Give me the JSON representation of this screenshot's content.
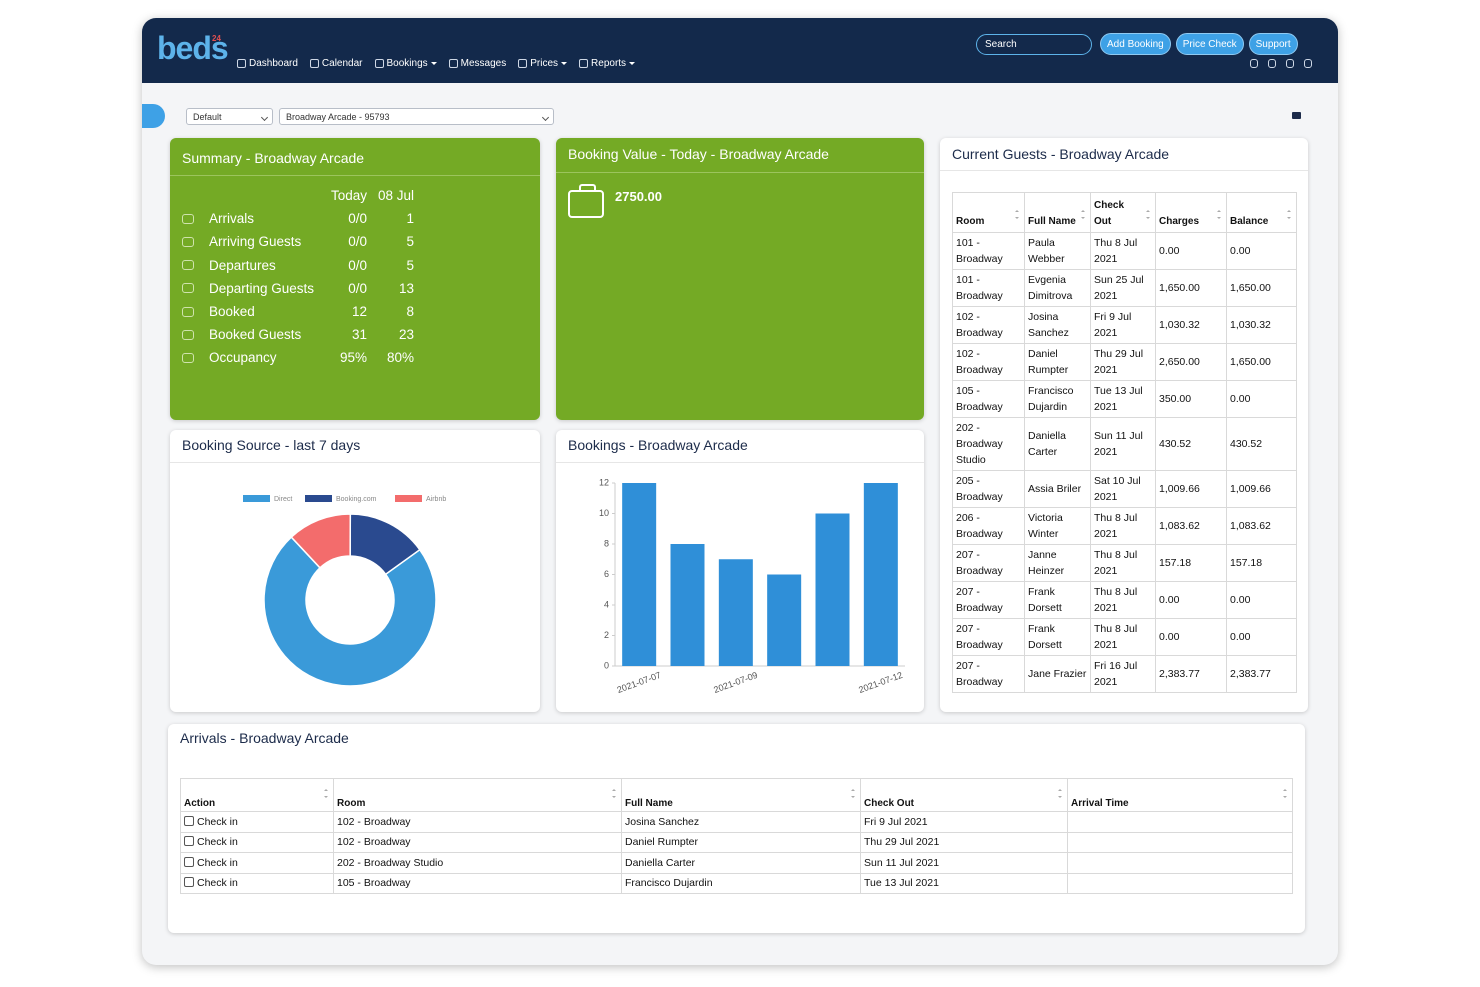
{
  "nav": {
    "logo": "beds",
    "logo_badge": "24",
    "menu": [
      "Dashboard",
      "Calendar",
      "Bookings",
      "Messages",
      "Prices",
      "Reports"
    ],
    "search_placeholder": "Search",
    "buttons": [
      "Add Booking",
      "Price Check",
      "Support"
    ]
  },
  "filters": {
    "view": "Default",
    "property": "Broadway Arcade - 95793"
  },
  "summary": {
    "title": "Summary - Broadway Arcade",
    "columns": [
      "Today",
      "08 Jul"
    ],
    "rows": [
      [
        "Arrivals",
        "0/0",
        "1"
      ],
      [
        "Arriving Guests",
        "0/0",
        "5"
      ],
      [
        "Departures",
        "0/0",
        "5"
      ],
      [
        "Departing Guests",
        "0/0",
        "13"
      ],
      [
        "Booked",
        "12",
        "8"
      ],
      [
        "Booked Guests",
        "31",
        "23"
      ],
      [
        "Occupancy",
        "95%",
        "80%"
      ]
    ]
  },
  "booking_value": {
    "title": "Booking Value - Today - Broadway Arcade",
    "amount": "2750.00"
  },
  "current_guests": {
    "title": "Current Guests - Broadway Arcade",
    "columns": [
      "Room",
      "Full Name",
      "Check Out",
      "Charges",
      "Balance"
    ],
    "rows": [
      [
        "101 - Broadway",
        "Paula Webber",
        "Thu 8 Jul 2021",
        "0.00",
        "0.00"
      ],
      [
        "101 - Broadway",
        "Evgenia Dimitrova",
        "Sun 25 Jul 2021",
        "1,650.00",
        "1,650.00"
      ],
      [
        "102 - Broadway",
        "Josina Sanchez",
        "Fri 9 Jul 2021",
        "1,030.32",
        "1,030.32"
      ],
      [
        "102 - Broadway",
        "Daniel Rumpter",
        "Thu 29 Jul 2021",
        "2,650.00",
        "1,650.00"
      ],
      [
        "105 - Broadway",
        "Francisco Dujardin",
        "Tue 13 Jul 2021",
        "350.00",
        "0.00"
      ],
      [
        "202 - Broadway Studio",
        "Daniella Carter",
        "Sun 11 Jul 2021",
        "430.52",
        "430.52"
      ],
      [
        "205 - Broadway",
        "Assia Briler",
        "Sat 10 Jul 2021",
        "1,009.66",
        "1,009.66"
      ],
      [
        "206 - Broadway",
        "Victoria Winter",
        "Thu 8 Jul 2021",
        "1,083.62",
        "1,083.62"
      ],
      [
        "207 - Broadway",
        "Janne Heinzer",
        "Thu 8 Jul 2021",
        "157.18",
        "157.18"
      ],
      [
        "207 - Broadway",
        "Frank Dorsett",
        "Thu 8 Jul 2021",
        "0.00",
        "0.00"
      ],
      [
        "207 - Broadway",
        "Frank Dorsett",
        "Thu 8 Jul 2021",
        "0.00",
        "0.00"
      ],
      [
        "207 - Broadway",
        "Jane Frazier",
        "Fri 16 Jul 2021",
        "2,383.77",
        "2,383.77"
      ]
    ]
  },
  "booking_source": {
    "title": "Booking Source - last 7 days",
    "chart_data": {
      "type": "donut",
      "categories": [
        "Direct",
        "Booking.com",
        "Airbnb"
      ],
      "values": [
        73,
        15,
        12
      ],
      "colors": [
        "#3a9ad9",
        "#2a4a8f",
        "#f36c6c"
      ]
    }
  },
  "bookings": {
    "title": "Bookings - Broadway Arcade",
    "chart_data": {
      "type": "bar",
      "categories": [
        "2021-07-07",
        null,
        "2021-07-09",
        null,
        null,
        "2021-07-12"
      ],
      "values": [
        12,
        8,
        7,
        6,
        10,
        12
      ],
      "color": "#2f8fd8",
      "ylim": [
        0,
        12
      ],
      "yticks": [
        0,
        2,
        4,
        6,
        8,
        10,
        12
      ],
      "grid": false
    }
  },
  "arrivals": {
    "title": "Arrivals - Broadway Arcade",
    "columns": [
      "Action",
      "Room",
      "Full Name",
      "Check Out",
      "Arrival Time"
    ],
    "rows": [
      [
        "Check in",
        "102 - Broadway",
        "Josina Sanchez",
        "Fri 9 Jul 2021"
      ],
      [
        "Check in",
        "102 - Broadway",
        "Daniel Rumpter",
        "Thu 29 Jul 2021"
      ],
      [
        "Check in",
        "202 - Broadway Studio",
        "Daniella Carter",
        "Sun 11 Jul 2021"
      ],
      [
        "Check in",
        "105 - Broadway",
        "Francisco Dujardin",
        "Tue 13 Jul 2021"
      ]
    ]
  }
}
